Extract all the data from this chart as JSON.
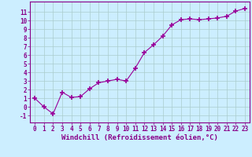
{
  "x": [
    0,
    1,
    2,
    3,
    4,
    5,
    6,
    7,
    8,
    9,
    10,
    11,
    12,
    13,
    14,
    15,
    16,
    17,
    18,
    19,
    20,
    21,
    22,
    23
  ],
  "y": [
    1,
    0,
    -0.8,
    1.7,
    1.1,
    1.2,
    2.1,
    2.8,
    3.0,
    3.2,
    3.0,
    4.5,
    6.3,
    7.2,
    8.2,
    9.5,
    10.1,
    10.2,
    10.1,
    10.2,
    10.3,
    10.5,
    11.1,
    11.4
  ],
  "line_color": "#990099",
  "marker": "+",
  "marker_size": 4,
  "bg_color": "#cceeff",
  "grid_color": "#aacccc",
  "xlabel": "Windchill (Refroidissement éolien,°C)",
  "ylabel_ticks": [
    -1,
    0,
    1,
    2,
    3,
    4,
    5,
    6,
    7,
    8,
    9,
    10,
    11
  ],
  "xlim": [
    -0.5,
    23.5
  ],
  "ylim": [
    -1.8,
    12.2
  ],
  "xtick_labels": [
    "0",
    "1",
    "2",
    "3",
    "4",
    "5",
    "6",
    "7",
    "8",
    "9",
    "10",
    "11",
    "12",
    "13",
    "14",
    "15",
    "16",
    "17",
    "18",
    "19",
    "20",
    "21",
    "22",
    "23"
  ],
  "tick_fontsize": 5.5,
  "xlabel_fontsize": 6.5,
  "spine_color": "#880088",
  "tick_color": "#880088",
  "label_color": "#880088"
}
